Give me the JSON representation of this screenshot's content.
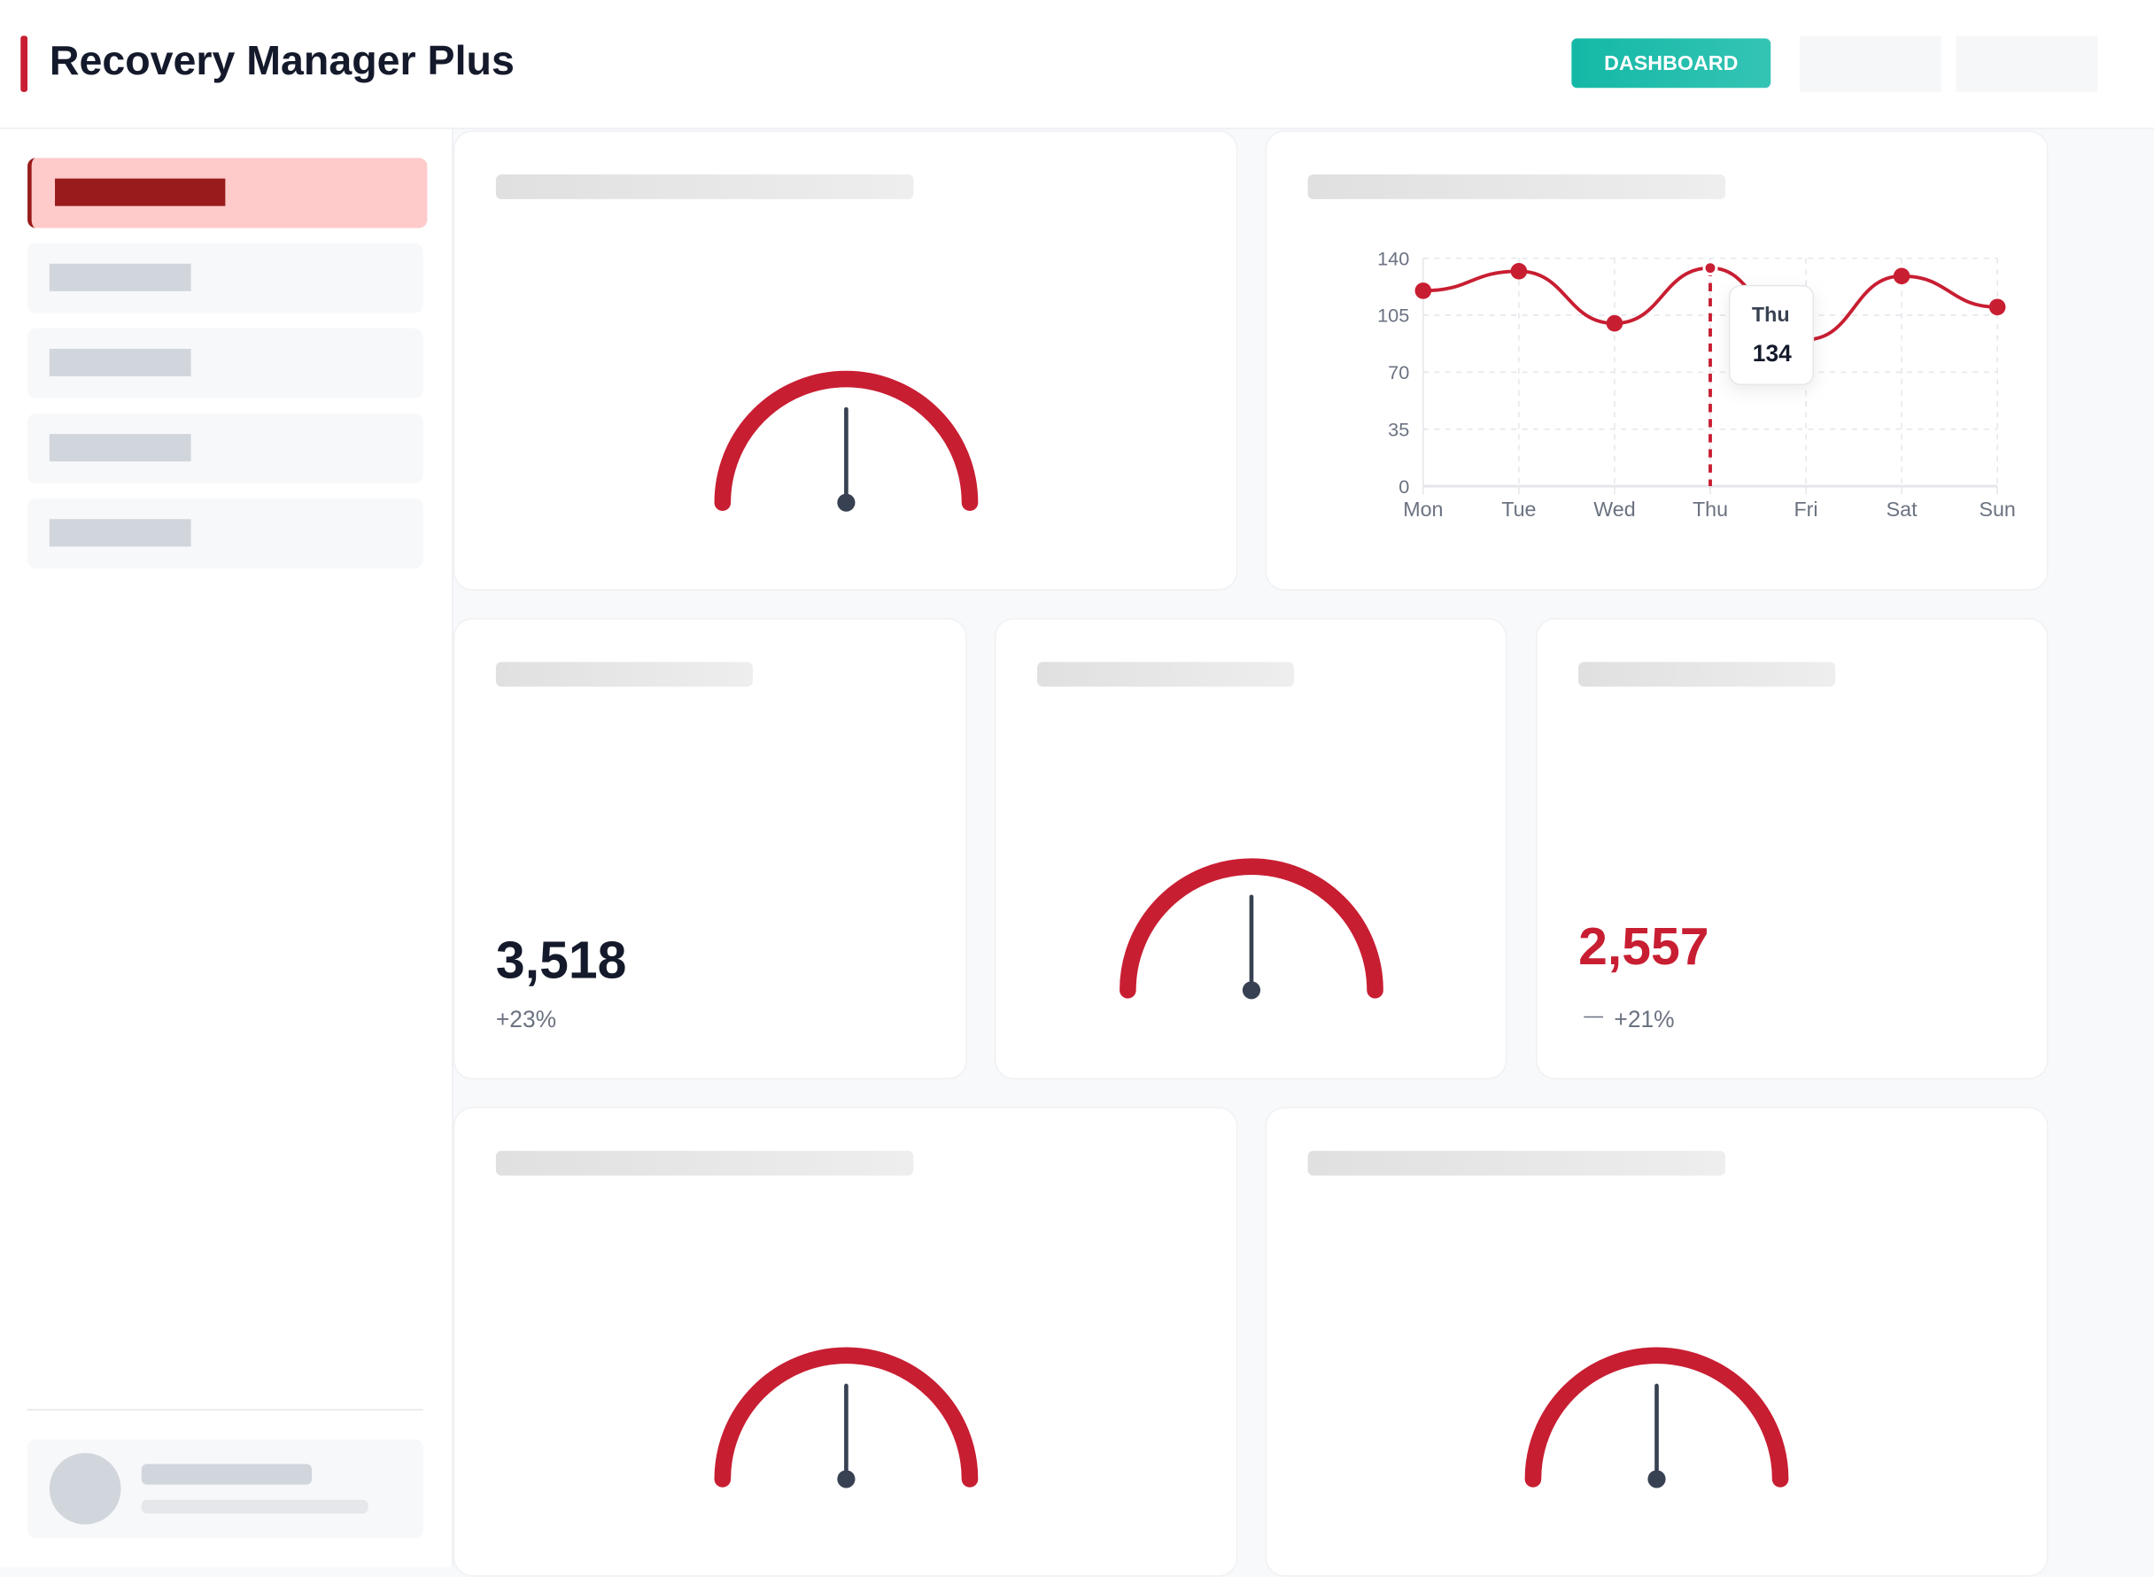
{
  "header": {
    "title": "Recovery Manager Plus",
    "dashboard_button": "DASHBOARD"
  },
  "colors": {
    "accent": "#c81e32",
    "teal": "#14b8a6",
    "needle": "#374151"
  },
  "stats": [
    {
      "value": "3,518",
      "delta": "+23%"
    },
    {
      "value": "2,557",
      "delta": "+21%",
      "trend_icon": "minus-icon"
    }
  ],
  "chart_data": {
    "type": "line",
    "categories": [
      "Mon",
      "Tue",
      "Wed",
      "Thu",
      "Fri",
      "Sat",
      "Sun"
    ],
    "values": [
      120,
      132,
      100,
      134,
      90,
      129,
      110
    ],
    "ylim": [
      0,
      140
    ],
    "yticks": [
      0,
      35,
      70,
      105,
      140
    ],
    "grid": true,
    "tooltip": {
      "label": "Thu",
      "value": "134"
    }
  }
}
